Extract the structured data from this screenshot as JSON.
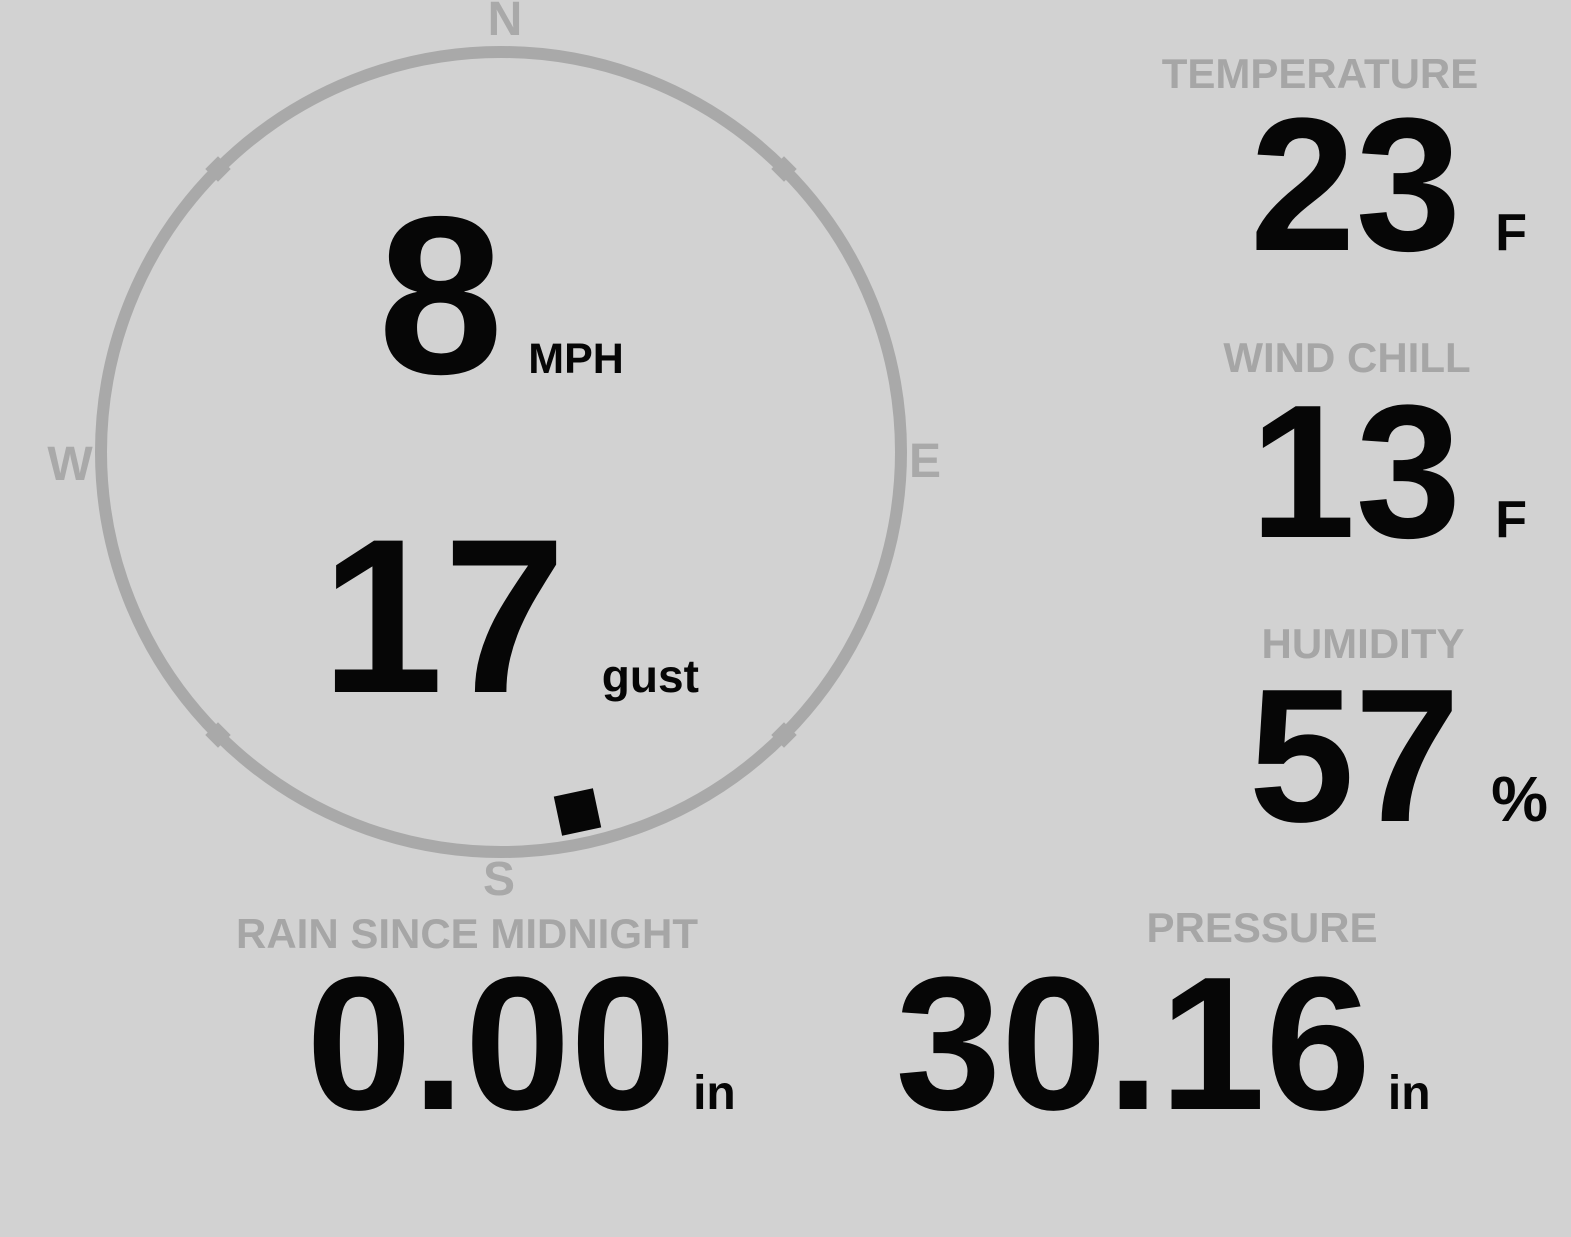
{
  "theme": {
    "bg": "#d2d2d2",
    "ink": "#060606",
    "muted": "#a6a6a6",
    "ring": "#a9a9a9"
  },
  "wind": {
    "speed": "8",
    "speed_unit": "MPH",
    "gust": "17",
    "gust_unit": "gust",
    "direction_degrees": 168,
    "compass": {
      "north": "N",
      "east": "E",
      "south": "S",
      "west": "W"
    }
  },
  "metrics": {
    "temperature": {
      "label": "TEMPERATURE",
      "value": "23",
      "unit": "F"
    },
    "wind_chill": {
      "label": "WIND CHILL",
      "value": "13",
      "unit": "F"
    },
    "humidity": {
      "label": "HUMIDITY",
      "value": "57",
      "unit": "%"
    },
    "rain_since_midnight": {
      "label": "RAIN SINCE MIDNIGHT",
      "value": "0.00",
      "unit": "in"
    },
    "pressure": {
      "label": "PRESSURE",
      "value": "30.16",
      "unit": "in"
    }
  }
}
